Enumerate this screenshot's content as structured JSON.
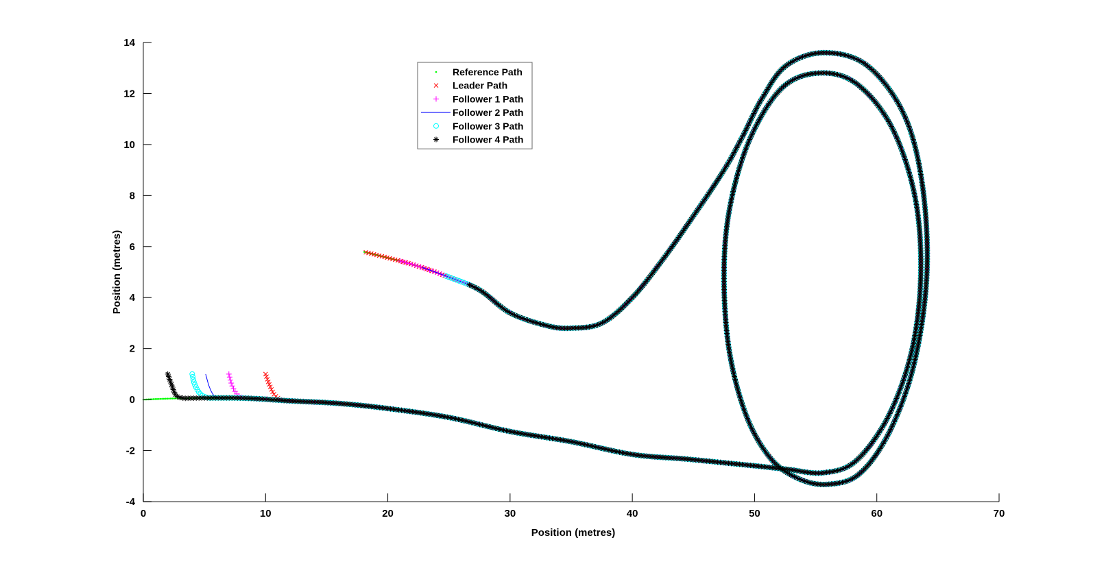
{
  "chart_data": {
    "type": "line",
    "title": "",
    "xlabel": "Position (metres)",
    "ylabel": "Position (metres)",
    "xlim": [
      0,
      70
    ],
    "ylim": [
      -4,
      14
    ],
    "xticks": [
      0,
      10,
      20,
      30,
      40,
      50,
      60,
      70
    ],
    "yticks": [
      -4,
      -2,
      0,
      2,
      4,
      6,
      8,
      10,
      12,
      14
    ],
    "grid": false,
    "legend_placement": "top-center",
    "reference_path": [
      [
        0,
        0
      ],
      [
        3,
        0.05
      ],
      [
        8,
        0.06
      ],
      [
        12,
        -0.05
      ],
      [
        16,
        -0.15
      ],
      [
        20,
        -0.35
      ],
      [
        25,
        -0.7
      ],
      [
        30,
        -1.25
      ],
      [
        35,
        -1.65
      ],
      [
        40,
        -2.15
      ],
      [
        44.4,
        -2.33
      ],
      [
        48,
        -2.5
      ],
      [
        50.5,
        -2.62
      ],
      [
        52.8,
        -2.74
      ],
      [
        55.6,
        -2.87
      ],
      [
        58.3,
        -2.4
      ],
      [
        61,
        -0.6
      ],
      [
        62.9,
        2
      ],
      [
        63.6,
        5
      ],
      [
        63.1,
        8
      ],
      [
        61.2,
        10.7
      ],
      [
        58.3,
        12.4
      ],
      [
        55.2,
        12.8
      ],
      [
        52.2,
        12.2
      ],
      [
        49.6,
        10.2
      ],
      [
        48,
        7.6
      ],
      [
        47.5,
        5
      ],
      [
        47.9,
        2
      ],
      [
        49.3,
        -0.6
      ],
      [
        51.3,
        -2.3
      ],
      [
        53.6,
        -3.1
      ],
      [
        56,
        -3.32
      ],
      [
        58.6,
        -2.9
      ],
      [
        61.1,
        -1.2
      ],
      [
        63.1,
        1.5
      ],
      [
        64.1,
        5
      ],
      [
        63.7,
        8.5
      ],
      [
        62.2,
        11.2
      ],
      [
        59.2,
        13.1
      ],
      [
        55.7,
        13.6
      ],
      [
        52.6,
        13.1
      ],
      [
        50.6,
        11.8
      ],
      [
        49,
        10.3
      ],
      [
        47.5,
        9
      ],
      [
        45,
        7.2
      ],
      [
        42.5,
        5.5
      ],
      [
        40,
        4
      ],
      [
        37.5,
        3
      ],
      [
        35,
        2.8
      ],
      [
        33,
        2.9
      ],
      [
        30,
        3.4
      ],
      [
        27.5,
        4.3
      ],
      [
        25,
        4.8
      ],
      [
        22,
        5.3
      ],
      [
        18,
        5.8
      ]
    ],
    "series": [
      {
        "name": "Reference Path",
        "marker": "dot",
        "color": "#00ff00",
        "start": [
          0,
          0
        ],
        "end_x": 18
      },
      {
        "name": "Leader Path",
        "marker": "x",
        "color": "#ff0000",
        "lead_in": [
          [
            10,
            1
          ],
          [
            10.3,
            0.6
          ],
          [
            10.7,
            0.2
          ],
          [
            11.2,
            0.0
          ]
        ],
        "end_x": 18
      },
      {
        "name": "Follower 1 Path",
        "marker": "plus",
        "color": "#ff00ff",
        "lead_in": [
          [
            7,
            1
          ],
          [
            7.3,
            0.5
          ],
          [
            7.8,
            0.15
          ],
          [
            8.4,
            0.05
          ]
        ],
        "end_x": 20.8
      },
      {
        "name": "Follower 2 Path",
        "marker": "line",
        "color": "#0000ff",
        "lead_in": [
          [
            5.1,
            1
          ],
          [
            5.4,
            0.5
          ],
          [
            5.8,
            0.15
          ],
          [
            6.4,
            0.05
          ]
        ],
        "end_x": 22.8
      },
      {
        "name": "Follower 3 Path",
        "marker": "circle",
        "color": "#00ffff",
        "lead_in": [
          [
            4,
            1
          ],
          [
            4.2,
            0.6
          ],
          [
            4.7,
            0.2
          ],
          [
            5.4,
            0.05
          ]
        ],
        "end_x": 24.6
      },
      {
        "name": "Follower 4 Path",
        "marker": "star",
        "color": "#000000",
        "lead_in": [
          [
            2,
            1
          ],
          [
            2.3,
            0.6
          ],
          [
            2.7,
            0.15
          ],
          [
            3.4,
            0.05
          ]
        ],
        "end_x": 26.5
      }
    ]
  }
}
